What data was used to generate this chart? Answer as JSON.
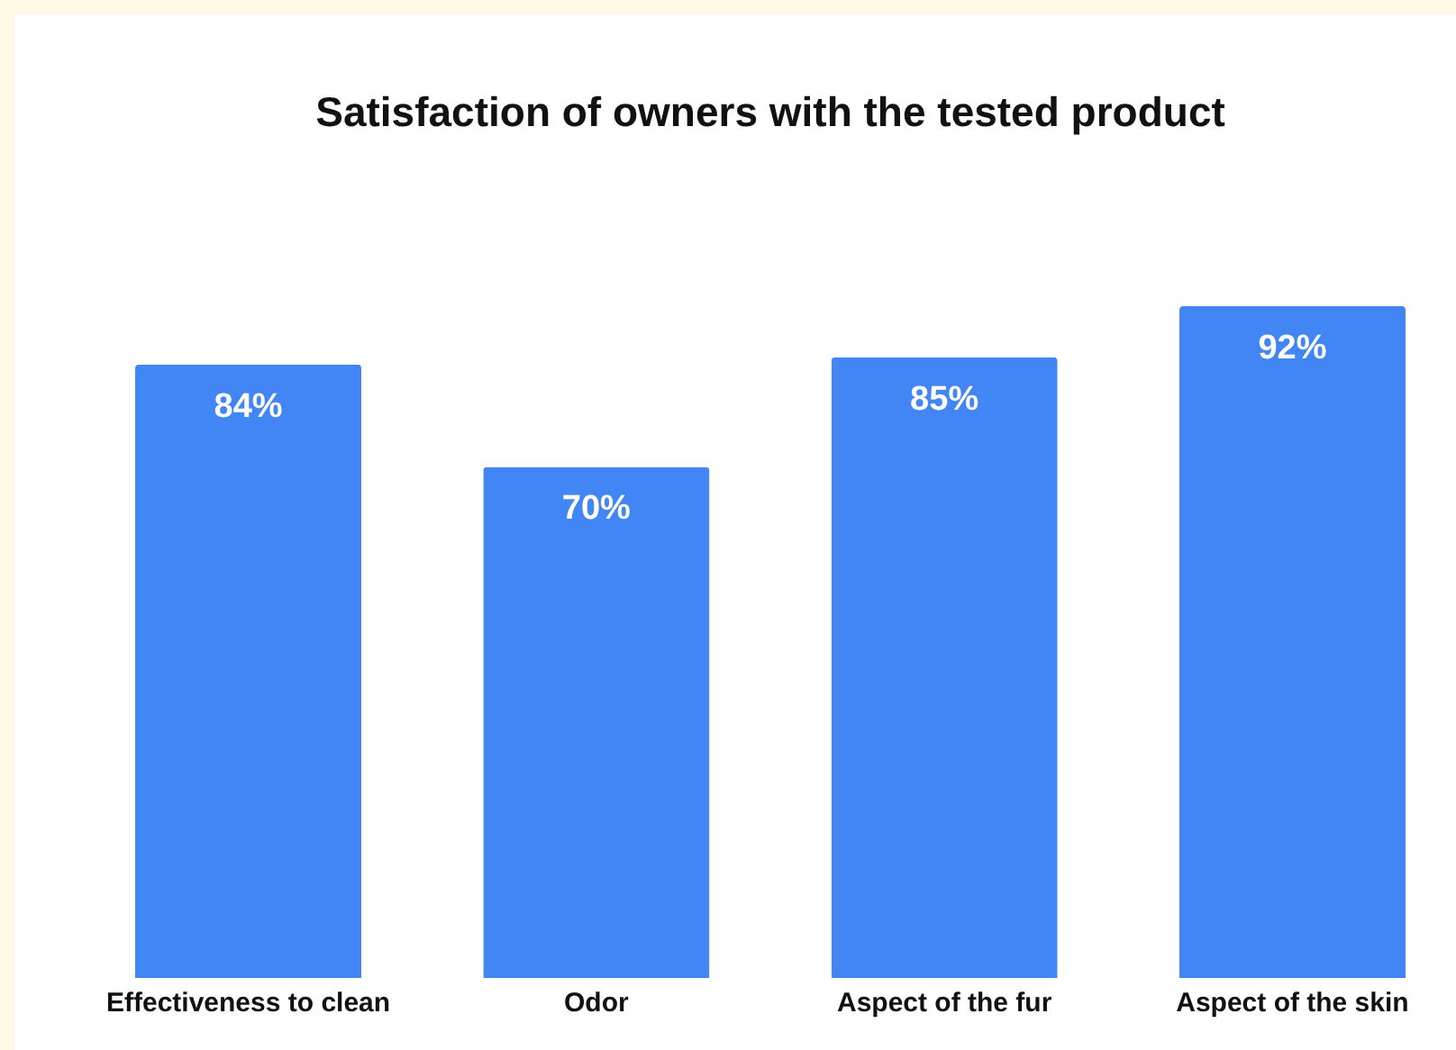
{
  "chart_data": {
    "type": "bar",
    "title": "Satisfaction of owners with the tested product",
    "categories": [
      "Effectiveness to clean",
      "Odor",
      "Aspect of the fur",
      "Aspect of the skin"
    ],
    "values": [
      84,
      70,
      85,
      92
    ],
    "value_labels": [
      "84%",
      "70%",
      "85%",
      "92%"
    ],
    "color": "#4285f4"
  }
}
